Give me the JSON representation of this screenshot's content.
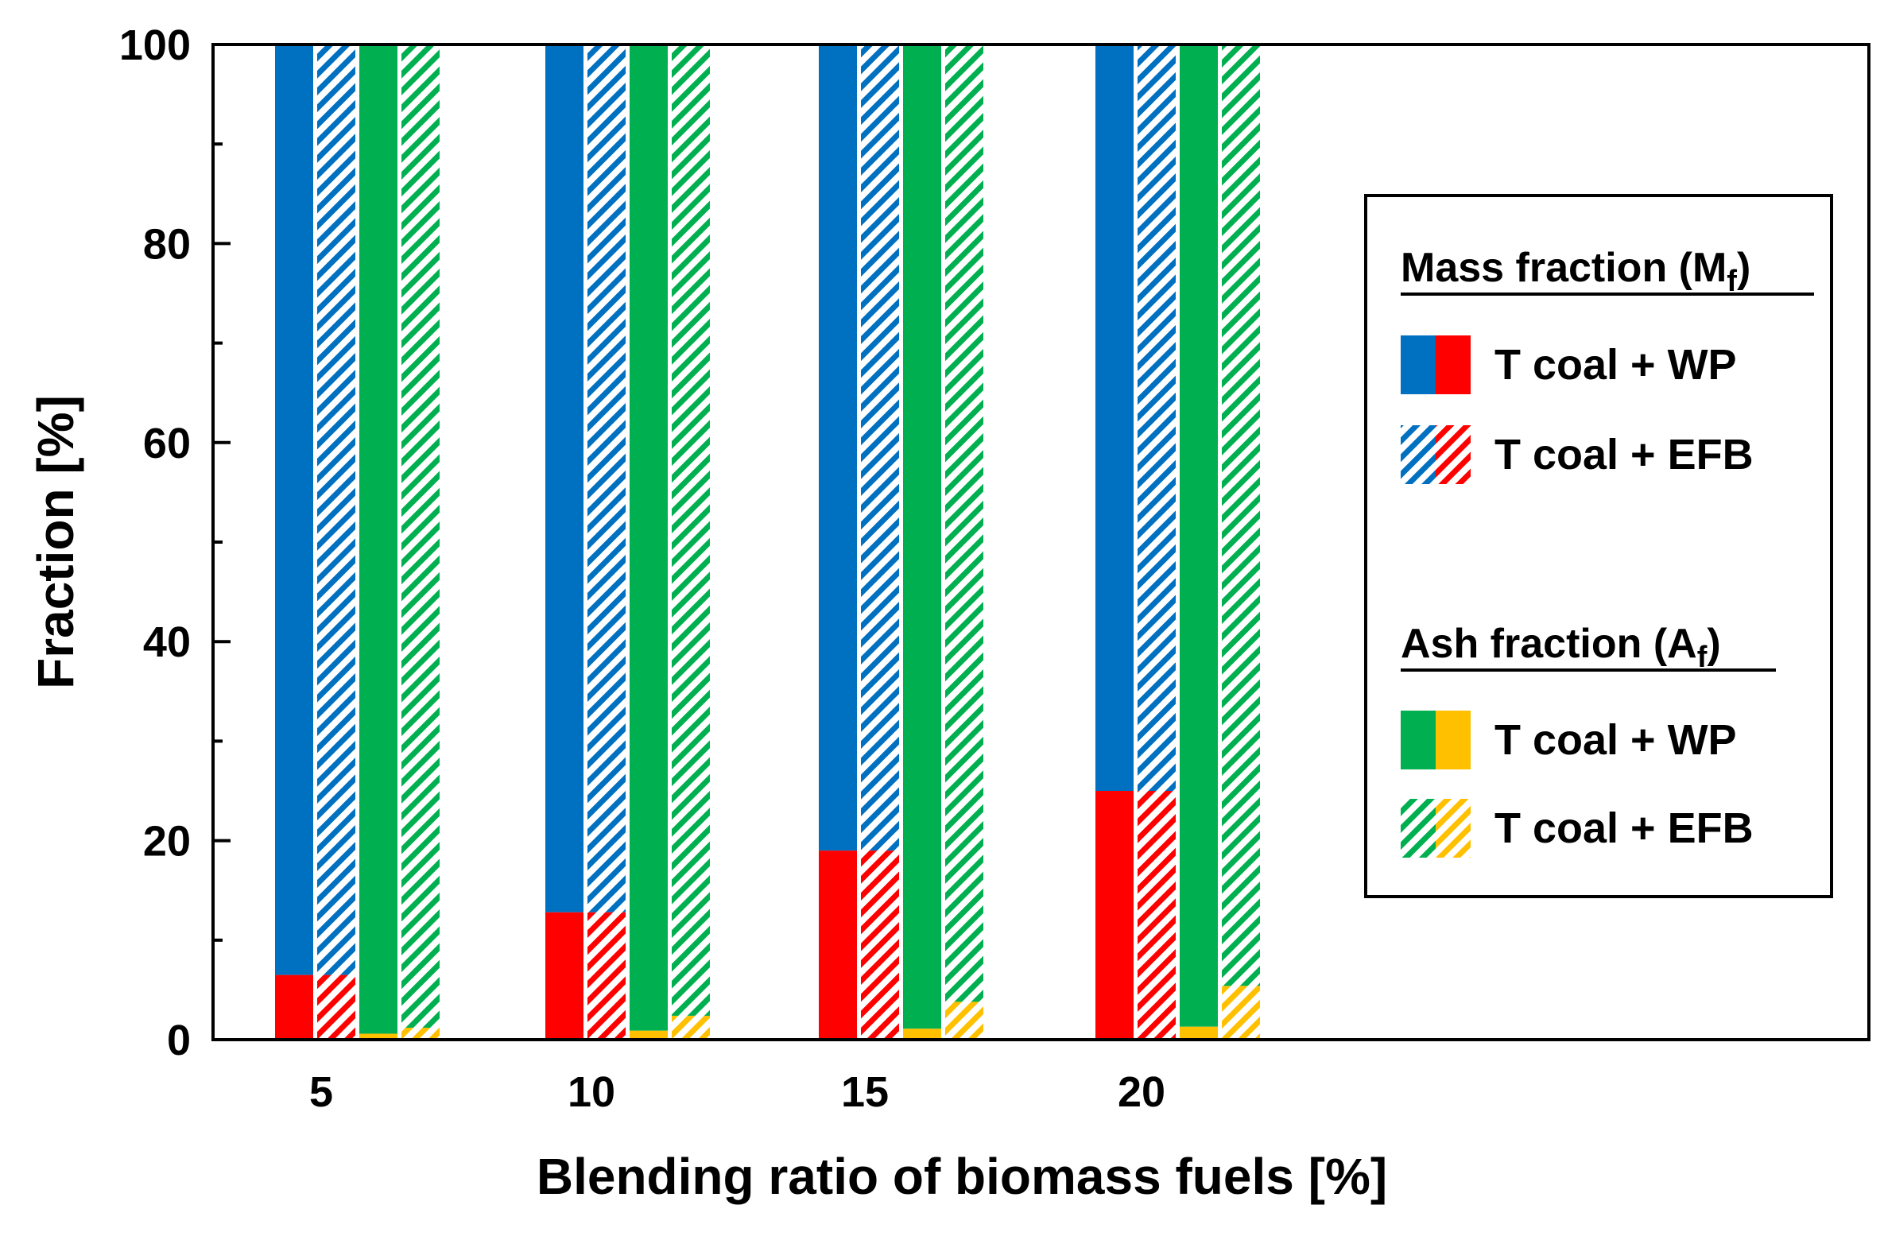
{
  "chart_data": {
    "type": "bar",
    "title": "",
    "xlabel": "Blending ratio of biomass fuels [%]",
    "ylabel": "Fraction [%]",
    "ylim": [
      0,
      100
    ],
    "yticks": [
      0,
      20,
      40,
      60,
      80,
      100
    ],
    "categories": [
      "5",
      "10",
      "15",
      "20"
    ],
    "grid": false,
    "series": [
      {
        "name": "Mass fraction (Mf) T coal + WP",
        "metric": "mass",
        "blend": "WP",
        "pattern": "solid",
        "coal_color": "#0070c0",
        "biomass_color": "#ff0000",
        "biomass_values": [
          6.5,
          12.8,
          19.0,
          25.0
        ]
      },
      {
        "name": "Mass fraction (Mf) T coal + EFB",
        "metric": "mass",
        "blend": "EFB",
        "pattern": "hatched",
        "coal_color": "#0070c0",
        "biomass_color": "#ff0000",
        "biomass_values": [
          6.5,
          12.8,
          19.0,
          25.0
        ]
      },
      {
        "name": "Ash fraction (Af) T coal + WP",
        "metric": "ash",
        "blend": "WP",
        "pattern": "solid",
        "coal_color": "#00b050",
        "biomass_color": "#ffc000",
        "biomass_values": [
          0.6,
          0.9,
          1.1,
          1.3
        ]
      },
      {
        "name": "Ash fraction (Af) T coal + EFB",
        "metric": "ash",
        "blend": "EFB",
        "pattern": "hatched",
        "coal_color": "#00b050",
        "biomass_color": "#ffc000",
        "biomass_values": [
          1.2,
          2.4,
          3.8,
          5.4
        ]
      }
    ],
    "legend": {
      "position": "right",
      "groups": [
        {
          "heading": "Mass fraction (M",
          "subscript": "f",
          "suffix": ")",
          "entries": [
            {
              "label": "T coal + WP",
              "pattern": "solid",
              "colors": [
                "#0070c0",
                "#ff0000"
              ]
            },
            {
              "label": "T coal + EFB",
              "pattern": "hatched",
              "colors": [
                "#0070c0",
                "#ff0000"
              ]
            }
          ]
        },
        {
          "heading": "Ash fraction (A",
          "subscript": "f",
          "suffix": ")",
          "entries": [
            {
              "label": "T coal + WP",
              "pattern": "solid",
              "colors": [
                "#00b050",
                "#ffc000"
              ]
            },
            {
              "label": "T coal + EFB",
              "pattern": "hatched",
              "colors": [
                "#00b050",
                "#ffc000"
              ]
            }
          ]
        }
      ]
    }
  }
}
